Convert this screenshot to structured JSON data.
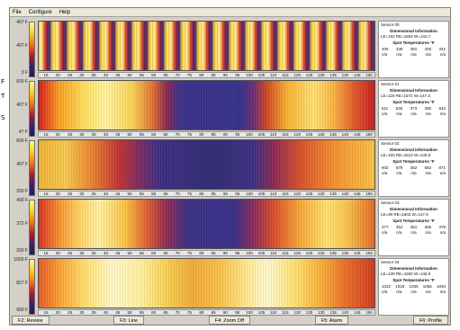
{
  "menu": [
    "File",
    "Configure",
    "Help"
  ],
  "side_glyphs": [
    "F",
    "T",
    "S"
  ],
  "sensors": [
    {
      "scale": [
        "407 F",
        "407 F",
        "3 F"
      ],
      "gradient": "repeating-linear-gradient(90deg, #f6d040 0px, #fff0a0 3px, #e8602a 6px, #8a2040 9px, #3a2a78 12px, #f6c030 15px, #ffe880 18px)",
      "ticks": [
        "15",
        "20",
        "25",
        "30",
        "35",
        "40",
        "45",
        "50",
        "55",
        "60",
        "65",
        "70",
        "75",
        "80",
        "85",
        "90",
        "95",
        "100",
        "105",
        "110",
        "115",
        "120",
        "125",
        "130",
        "135",
        "140",
        "145",
        "150"
      ],
      "info": {
        "name": "Sensor 00",
        "title": "Dimensional Information",
        "dims": "LE=102   RE=1602   W=142.7",
        "temps_title": "Spot Temperatures °F",
        "t1": [
          "406",
          "336",
          "391",
          "400",
          "342"
        ],
        "t2": [
          "n/a",
          "n/a",
          "n/a",
          "n/a",
          "n/a"
        ]
      }
    },
    {
      "scale": [
        "600 F",
        "407 F",
        "47 F"
      ],
      "gradient": "linear-gradient(90deg, #d81818 0%, #f8a020 6%, #ffe060 14%, #fff2a0 20%, #f8d050 28%, #e07030 34%, #8a2850 38%, #3a2e88 42%, #34308c 60%, #6a2c70 64%, #d04820 68%, #f8b030 74%, #ffe070 82%, #f8b040 88%, #e05828 94%, #c81c20 100%)",
      "ticks": [
        "15",
        "20",
        "25",
        "30",
        "35",
        "40",
        "45",
        "50",
        "55",
        "60",
        "65",
        "70",
        "75",
        "80",
        "85",
        "90",
        "95",
        "100",
        "105",
        "110",
        "115",
        "120",
        "125",
        "130",
        "135",
        "140",
        "145",
        "150"
      ],
      "info": {
        "name": "Sensor 01",
        "title": "Dimensional Information",
        "dims": "LE=119   RE=1572   W=147.3",
        "temps_title": "Spot Temperatures °F",
        "t1": [
          "611",
          "536",
          "373",
          "355",
          "642"
        ],
        "t2": [
          "n/a",
          "n/a",
          "n/a",
          "n/a",
          "n/a"
        ]
      }
    },
    {
      "scale": [
        "600 F",
        "407 F",
        "200 F"
      ],
      "gradient": "linear-gradient(90deg, #f0b030 0%, #f6c850 8%, #e88030 16%, #c03030 24%, #7a2a60 30%, #3c2c80 36%, #2e2a70 52%, #3c2e80 64%, #8a2850 70%, #d85028 78%, #f49030 88%, #f8c040 100%)",
      "ticks": [
        "15",
        "20",
        "25",
        "30",
        "35",
        "40",
        "45",
        "50",
        "55",
        "60",
        "65",
        "70",
        "75",
        "80",
        "85",
        "90",
        "95",
        "100",
        "105",
        "110",
        "115",
        "120",
        "125",
        "130",
        "135",
        "140",
        "145",
        "150"
      ],
      "info": {
        "name": "Sensor 02",
        "title": "Dimensional Information",
        "dims": "LE=103   RE=1512   W=140.8",
        "temps_title": "Spot Temperatures °F",
        "t1": [
          "602",
          "578",
          "352",
          "582",
          "871"
        ],
        "t2": [
          "n/a",
          "n/a",
          "n/a",
          "n/a",
          "n/a"
        ]
      }
    },
    {
      "scale": [
        "400 F",
        "372 F",
        "200 F"
      ],
      "gradient": "linear-gradient(90deg, #d83020 0%, #f49030 6%, #ffd060 12%, #fff0a0 18%, #f8c040 26%, #e06030 32%, #902850 38%, #3a2e84 44%, #342e88 58%, #8a2a58 64%, #d84c28 70%, #f8a838 78%, #ffe070 86%, #f8c048 92%, #e06828 100%)",
      "ticks": [
        "15",
        "20",
        "25",
        "30",
        "35",
        "40",
        "45",
        "50",
        "55",
        "60",
        "65",
        "70",
        "75",
        "80",
        "85",
        "90",
        "95",
        "100",
        "105",
        "110",
        "115",
        "120",
        "125",
        "130",
        "135",
        "140",
        "145",
        "150"
      ],
      "info": {
        "name": "Sensor 03",
        "title": "Dimensional Information",
        "dims": "LE=90    RE=1602   W=147.9",
        "temps_title": "Spot Temperatures °F",
        "t1": [
          "377",
          "352",
          "351",
          "356",
          "378"
        ],
        "t2": [
          "n/a",
          "n/a",
          "n/a",
          "n/a",
          "n/a"
        ]
      }
    },
    {
      "scale": [
        "1000 F",
        "827 F",
        "900 F"
      ],
      "gradient": "linear-gradient(90deg, #e85828 0%, #f8a030 6%, #ffe070 14%, #fff8c8 22%, #fff0a0 30%, #f8d050 38%, #f0a838 46%, #f8c048 54%, #ffe890 62%, #fff8d0 68%, #ffe070 76%, #f8b038 84%, #e86828 92%, #d03820 100%)",
      "ticks": [
        "15",
        "20",
        "25",
        "30",
        "35",
        "40",
        "45",
        "50",
        "55",
        "60",
        "65",
        "70",
        "75",
        "80",
        "85",
        "90",
        "95",
        "100",
        "105",
        "110",
        "115",
        "120",
        "125",
        "130",
        "135",
        "140",
        "145",
        "150"
      ],
      "info": {
        "name": "Sensor 04",
        "title": "Dimensional Information",
        "dims": "LE=128   RE=1592   W=146.9",
        "temps_title": "Spot Temperatures °F",
        "t1": [
          "1022",
          "1033",
          "1030",
          "1056",
          "1040"
        ],
        "t2": [
          "n/a",
          "n/a",
          "n/a",
          "n/a",
          "n/a"
        ]
      }
    }
  ],
  "fkeys": [
    "F2: Review",
    "F3: Line",
    "F4: Zoom Off",
    "F5: Alarm",
    "F6: Profile"
  ]
}
